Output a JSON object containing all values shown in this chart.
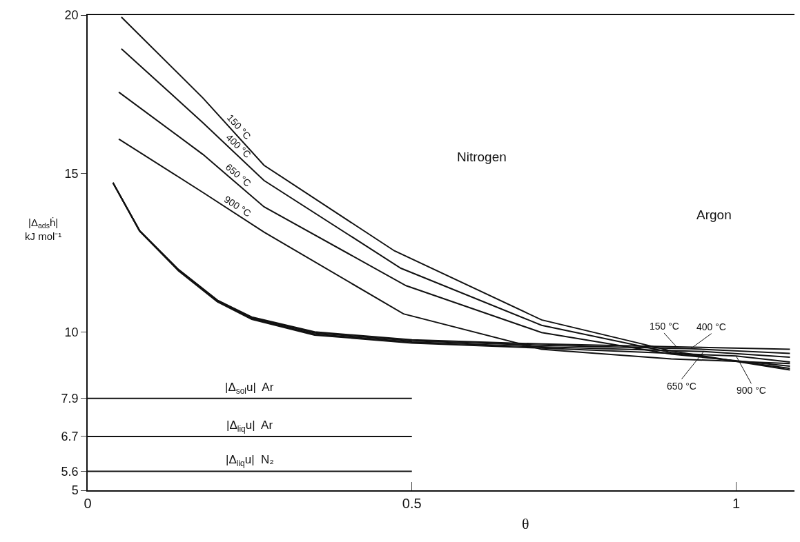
{
  "chart_data": {
    "type": "line",
    "xlabel": "θ",
    "ylabel": "|Δ$_{ads}$ḣ|\nkJ mol⁻¹",
    "xlim": [
      0,
      1.09
    ],
    "ylim": [
      5,
      20
    ],
    "xticks": [
      0,
      0.5,
      1
    ],
    "yticks": [
      5,
      5.6,
      6.7,
      7.9,
      10,
      15,
      20
    ],
    "grid": false,
    "legend": false,
    "marker": "none",
    "line_style": "solid",
    "annotations": [
      "Nitrogen",
      "Argon"
    ],
    "series": [
      {
        "name": "150 °C",
        "color": "#111111",
        "x": [
          0.052,
          0.178,
          0.272,
          0.473,
          0.7,
          0.9,
          1.083
        ],
        "values": [
          19.94,
          17.38,
          15.26,
          12.56,
          10.38,
          9.4,
          8.8
        ]
      },
      {
        "name": "400 °C",
        "color": "#111111",
        "x": [
          0.052,
          0.178,
          0.272,
          0.483,
          0.7,
          0.9,
          1.083
        ],
        "values": [
          18.94,
          16.6,
          14.78,
          12.01,
          10.21,
          9.35,
          8.85
        ]
      },
      {
        "name": "650 °C",
        "color": "#111111",
        "x": [
          0.048,
          0.178,
          0.272,
          0.491,
          0.7,
          0.9,
          1.083
        ],
        "values": [
          17.57,
          15.6,
          13.95,
          11.46,
          9.98,
          9.3,
          8.92
        ]
      },
      {
        "name": "900 °C",
        "color": "#111111",
        "x": [
          0.048,
          0.178,
          0.272,
          0.487,
          0.7,
          0.9,
          1.083
        ],
        "values": [
          16.09,
          14.4,
          13.15,
          10.57,
          9.45,
          9.15,
          9.0
        ]
      },
      {
        "name": "150 °C",
        "color": "#111111",
        "x": [
          0.039,
          0.08,
          0.14,
          0.2,
          0.253,
          0.35,
          0.5,
          0.7,
          0.908,
          1.083
        ],
        "values": [
          14.71,
          13.2,
          11.97,
          11.0,
          10.47,
          10.0,
          9.75,
          9.62,
          9.53,
          9.45
        ]
      },
      {
        "name": "400 °C",
        "color": "#111111",
        "x": [
          0.039,
          0.08,
          0.14,
          0.2,
          0.253,
          0.35,
          0.5,
          0.7,
          0.93,
          1.083
        ],
        "values": [
          14.71,
          13.2,
          11.97,
          11.0,
          10.45,
          9.97,
          9.72,
          9.58,
          9.47,
          9.32
        ]
      },
      {
        "name": "650 °C",
        "color": "#111111",
        "x": [
          0.039,
          0.08,
          0.14,
          0.2,
          0.253,
          0.35,
          0.5,
          0.7,
          0.95,
          1.083
        ],
        "values": [
          14.71,
          13.2,
          11.95,
          10.97,
          10.42,
          9.93,
          9.68,
          9.53,
          9.38,
          9.2
        ]
      },
      {
        "name": "900 °C",
        "color": "#111111",
        "x": [
          0.039,
          0.08,
          0.14,
          0.2,
          0.253,
          0.35,
          0.5,
          0.7,
          1.0,
          1.083
        ],
        "values": [
          14.71,
          13.18,
          11.93,
          10.95,
          10.4,
          9.9,
          9.65,
          9.49,
          9.24,
          9.05
        ]
      },
      {
        "name": "|Δ$_{sol}$u|  Ar",
        "color": "#111111",
        "x": [
          0,
          0.5
        ],
        "values": [
          7.9,
          7.9
        ]
      },
      {
        "name": "|Δ$_{liq}$u|  Ar",
        "color": "#111111",
        "x": [
          0,
          0.5
        ],
        "values": [
          6.7,
          6.7
        ]
      },
      {
        "name": "|Δ$_{liq}$u|  N₂",
        "color": "#111111",
        "x": [
          0,
          0.5
        ],
        "values": [
          5.6,
          5.6
        ]
      }
    ]
  }
}
